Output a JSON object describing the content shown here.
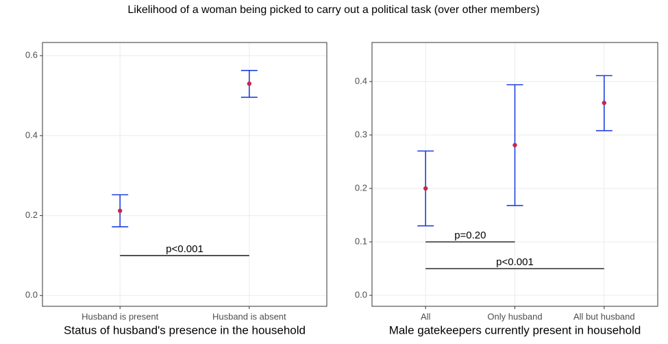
{
  "title": "Likelihood of a woman being picked to carry out a political task (over other members)",
  "chart_data": [
    {
      "type": "errorbar",
      "x_label": "Status of husband's presence in the household",
      "categories": [
        "Husband is present",
        "Husband is absent"
      ],
      "values": [
        0.212,
        0.53
      ],
      "lower": [
        0.172,
        0.496
      ],
      "upper": [
        0.252,
        0.563
      ],
      "point_color": "#c8264a",
      "bar_color": "#1f3fe0",
      "ylim": [
        -0.027,
        0.633
      ],
      "yticks": [
        {
          "value": 0,
          "label": "0.0"
        },
        0.2,
        0.4,
        0.6
      ],
      "grid": true,
      "annotations": [
        {
          "label": "p<0.001",
          "y": 0.1,
          "from": "Husband is present",
          "to": "Husband is absent"
        }
      ]
    },
    {
      "type": "errorbar",
      "x_label": "Male gatekeepers currently present in household",
      "categories": [
        "All",
        "Only husband",
        "All but husband"
      ],
      "values": [
        0.2,
        0.281,
        0.36
      ],
      "lower": [
        0.13,
        0.168,
        0.308
      ],
      "upper": [
        0.27,
        0.394,
        0.411
      ],
      "point_color": "#c8264a",
      "bar_color": "#1f3fe0",
      "ylim": [
        -0.0205,
        0.473
      ],
      "yticks": [
        {
          "value": 0,
          "label": "0.0"
        },
        0.1,
        0.2,
        0.3,
        0.4
      ],
      "grid": true,
      "annotations": [
        {
          "label": "p=0.20",
          "y": 0.1,
          "from": "All",
          "to": "Only husband"
        },
        {
          "label": "p<0.001",
          "y": 0.05,
          "from": "All",
          "to": "All but husband"
        }
      ]
    }
  ]
}
